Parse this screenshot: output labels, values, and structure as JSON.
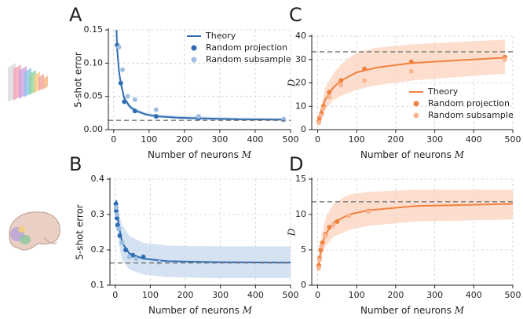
{
  "chart_data": [
    {
      "type": "line",
      "label": "A",
      "ylabel": "5-shot error",
      "xlabel": "Number of neurons",
      "xlabel_symbol": "M",
      "xlim": [
        -15,
        500
      ],
      "ylim": [
        0,
        0.15
      ],
      "xticks": [
        0,
        100,
        200,
        300,
        400,
        500
      ],
      "yticks": [
        {
          "value": 0,
          "label": "0.00"
        },
        {
          "value": 0.05,
          "label": "0.05"
        },
        {
          "value": 0.1,
          "label": "0.10"
        },
        {
          "value": 0.15,
          "label": "0.15"
        }
      ],
      "grid": true,
      "legend": "upper right",
      "asymptote": 0.014,
      "series": [
        {
          "name": "Theory",
          "kind": "line",
          "color": "#2f6db3",
          "band_color": "#c5d8ee",
          "x": [
            8,
            10,
            15,
            20,
            30,
            45,
            60,
            90,
            120,
            180,
            240,
            360,
            480
          ],
          "values": [
            0.15,
            0.12,
            0.088,
            0.07,
            0.047,
            0.035,
            0.029,
            0.023,
            0.02,
            0.018,
            0.017,
            0.0155,
            0.015
          ],
          "band_lower": [
            0.135,
            0.108,
            0.079,
            0.063,
            0.042,
            0.031,
            0.026,
            0.021,
            0.018,
            0.016,
            0.015,
            0.014,
            0.0135
          ],
          "band_upper": [
            0.15,
            0.132,
            0.097,
            0.077,
            0.052,
            0.039,
            0.032,
            0.026,
            0.023,
            0.021,
            0.02,
            0.018,
            0.0175
          ]
        },
        {
          "name": "Random projection",
          "kind": "scatter",
          "color": "#2f6db3",
          "x": [
            10,
            20,
            30,
            60,
            120,
            240,
            480
          ],
          "values": [
            0.127,
            0.07,
            0.042,
            0.028,
            0.02,
            0.017,
            0.015
          ]
        },
        {
          "name": "Random subsample",
          "kind": "scatter",
          "color": "#9fbfe2",
          "x": [
            15,
            25,
            40,
            60,
            120,
            240,
            480
          ],
          "values": [
            0.124,
            0.09,
            0.05,
            0.045,
            0.03,
            0.02,
            0.016
          ]
        }
      ]
    },
    {
      "type": "line",
      "label": "B",
      "ylabel": "5-shot error",
      "xlabel": "Number of neurons",
      "xlabel_symbol": "M",
      "xlim": [
        -15,
        500
      ],
      "ylim": [
        0.1,
        0.4
      ],
      "xticks": [
        0,
        100,
        200,
        300,
        400,
        500
      ],
      "yticks": [
        0.1,
        0.2,
        0.3,
        0.4
      ],
      "grid": true,
      "asymptote": 0.163,
      "series": [
        {
          "kind": "line",
          "color": "#2f6db3",
          "band_color": "#c5d8ee",
          "x": [
            3,
            5,
            10,
            20,
            40,
            80,
            150,
            300,
            500
          ],
          "values": [
            0.34,
            0.31,
            0.27,
            0.22,
            0.19,
            0.175,
            0.168,
            0.165,
            0.164
          ],
          "band_lower": [
            0.3,
            0.27,
            0.22,
            0.17,
            0.145,
            0.13,
            0.123,
            0.12,
            0.12
          ],
          "band_upper": [
            0.345,
            0.33,
            0.3,
            0.27,
            0.24,
            0.22,
            0.212,
            0.21,
            0.21
          ]
        },
        {
          "kind": "scatter",
          "color": "#2f6db3",
          "x": [
            2,
            3,
            5,
            7,
            10,
            13,
            20,
            30,
            50,
            80
          ],
          "values": [
            0.33,
            0.31,
            0.29,
            0.27,
            0.26,
            0.24,
            0.22,
            0.2,
            0.185,
            0.18
          ]
        },
        {
          "kind": "scatter",
          "color": "#9fbfe2",
          "x": [
            3,
            5,
            10,
            20,
            40,
            60,
            125
          ],
          "values": [
            0.32,
            0.3,
            0.26,
            0.22,
            0.18,
            0.175,
            0.165
          ]
        }
      ]
    },
    {
      "type": "line",
      "label": "C",
      "ylabel": "D",
      "xlabel": "Number of neurons",
      "xlabel_symbol": "M",
      "xlim": [
        -15,
        500
      ],
      "ylim": [
        0,
        40
      ],
      "xticks": [
        0,
        100,
        200,
        300,
        400,
        500
      ],
      "yticks": [
        0,
        10,
        20,
        30,
        40
      ],
      "grid": true,
      "legend": "lower right",
      "asymptote": 33.3,
      "series": [
        {
          "name": "Theory",
          "kind": "line",
          "color": "#f0823f",
          "band_color": "#fcd3bd",
          "x": [
            2,
            5,
            10,
            20,
            40,
            60,
            100,
            150,
            240,
            480
          ],
          "values": [
            3,
            5,
            8.5,
            13,
            18,
            21,
            24.5,
            26.5,
            28.5,
            30.8
          ],
          "band_lower": [
            2,
            3.5,
            6,
            9,
            12.5,
            14.5,
            17,
            19,
            21,
            24
          ],
          "band_upper": [
            4,
            7,
            11,
            18,
            24,
            28,
            33,
            35,
            36.5,
            38.5
          ]
        },
        {
          "name": "Random projection",
          "kind": "scatter",
          "color": "#f0823f",
          "x": [
            3,
            5,
            10,
            15,
            30,
            60,
            120,
            240,
            480
          ],
          "values": [
            3.5,
            5,
            7,
            10,
            16,
            21,
            26,
            29,
            31
          ]
        },
        {
          "name": "Random subsample",
          "kind": "scatter",
          "color": "#f8b692",
          "x": [
            3,
            8,
            15,
            30,
            60,
            120,
            240,
            480
          ],
          "values": [
            3,
            6,
            9,
            14,
            19,
            21,
            25,
            30
          ]
        }
      ]
    },
    {
      "type": "line",
      "label": "D",
      "ylabel": "D",
      "xlabel": "Number of neurons",
      "xlabel_symbol": "M",
      "xlim": [
        -15,
        500
      ],
      "ylim": [
        0,
        15
      ],
      "xticks": [
        0,
        100,
        200,
        300,
        400,
        500
      ],
      "yticks": [
        0,
        5,
        10,
        15
      ],
      "grid": true,
      "asymptote": 11.8,
      "series": [
        {
          "kind": "line",
          "color": "#f0823f",
          "band_color": "#fcd3bd",
          "x": [
            2,
            5,
            10,
            20,
            40,
            80,
            130,
            250,
            500
          ],
          "values": [
            2.5,
            3.8,
            5.3,
            7.2,
            8.8,
            10,
            10.6,
            11.2,
            11.5
          ],
          "band_lower": [
            1.5,
            2.8,
            4,
            5.5,
            6.8,
            7.8,
            8.4,
            9,
            9.3
          ],
          "band_upper": [
            3.5,
            5,
            7,
            9.5,
            11.5,
            12.8,
            13.2,
            13.5,
            13.5
          ]
        },
        {
          "kind": "scatter",
          "color": "#f0823f",
          "x": [
            3,
            5,
            8,
            12,
            20,
            30,
            50,
            80,
            130
          ],
          "values": [
            2.8,
            3.8,
            5,
            6,
            7.2,
            8.2,
            9,
            9.8,
            10.5
          ]
        },
        {
          "kind": "scatter",
          "color": "#f8b692",
          "x": [
            3,
            5,
            10,
            20,
            40,
            80,
            130
          ],
          "values": [
            2.4,
            3.6,
            5.5,
            7,
            8.5,
            9.8,
            10.4
          ]
        }
      ]
    }
  ]
}
